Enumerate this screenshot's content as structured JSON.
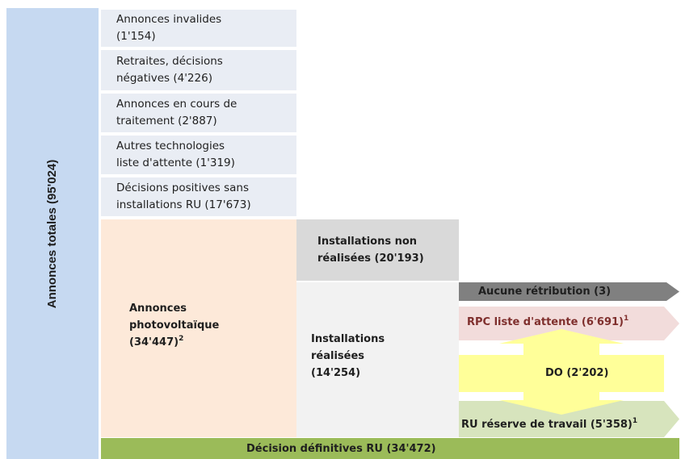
{
  "total": "Annonces totales (95'024)",
  "boxes": [
    {
      "lines": [
        "Annonces invalides",
        "(1'154)"
      ]
    },
    {
      "lines": [
        "Retraites, décisions",
        "négatives (4'226)"
      ]
    },
    {
      "lines": [
        "Annonces en cours de",
        "traitement (2'887)"
      ]
    },
    {
      "lines": [
        "Autres technologies",
        "liste d'attente (1'319)"
      ]
    },
    {
      "lines": [
        "Décisions positives sans",
        "installations RU (17'673)"
      ]
    }
  ],
  "photovoltaic": {
    "lines": [
      "Annonces",
      "photovoltaïque",
      "(34'447)"
    ],
    "note": "2"
  },
  "not_realized": {
    "lines": [
      "Installations non",
      "réalisées (20'193)"
    ]
  },
  "realized": {
    "lines": [
      "Installations",
      "réalisées",
      "(14'254)"
    ]
  },
  "outcomes": {
    "no_remuneration": "Aucune rétribution (3)",
    "rpc": {
      "label": "RPC liste d'attente (6'691)",
      "note": "1"
    },
    "do": "DO (2'202)",
    "ru_reserve": {
      "label": "RU réserve de travail (5'358)",
      "note": "1"
    }
  },
  "final": "Décision définitives RU (34'472)"
}
